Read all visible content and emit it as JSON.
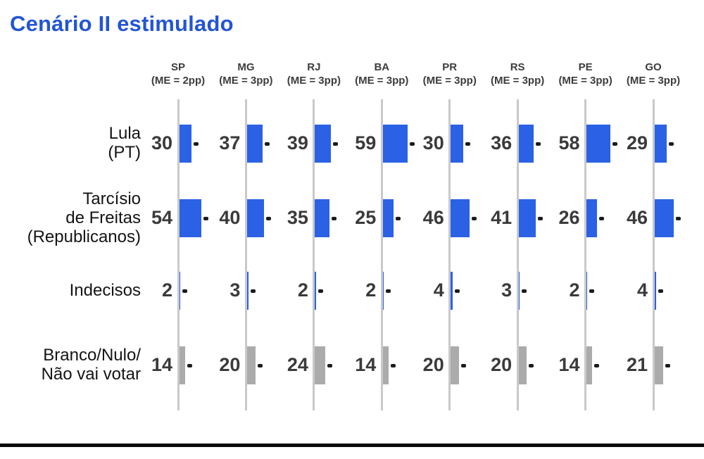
{
  "title": "Cenário II estimulado",
  "colors": {
    "title": "#2355d4",
    "bar_blue": "#2b61e4",
    "bar_gray": "#ababab",
    "axis_line": "#c9c9c9",
    "tick": "#1c1c1c",
    "value_text": "#3a3a3a",
    "bottom_rule": "#0a0a0a"
  },
  "chart_data": {
    "type": "bar",
    "orientation": "horizontal-small-multiples",
    "title": "Cenário II estimulado",
    "legend_position": "none",
    "grid": "off",
    "value_axis_range": [
      0,
      60
    ],
    "unit": "percentage points",
    "columns": [
      {
        "state": "SP",
        "margin_of_error": "(ME = 2pp)"
      },
      {
        "state": "MG",
        "margin_of_error": "(ME = 3pp)"
      },
      {
        "state": "RJ",
        "margin_of_error": "(ME = 3pp)"
      },
      {
        "state": "BA",
        "margin_of_error": "(ME = 3pp)"
      },
      {
        "state": "PR",
        "margin_of_error": "(ME = 3pp)"
      },
      {
        "state": "RS",
        "margin_of_error": "(ME = 3pp)"
      },
      {
        "state": "PE",
        "margin_of_error": "(ME = 3pp)"
      },
      {
        "state": "GO",
        "margin_of_error": "(ME = 3pp)"
      }
    ],
    "rows": [
      {
        "name": "Lula (PT)",
        "label_lines": [
          "Lula",
          "(PT)"
        ],
        "color": "#2b61e4",
        "values": [
          30,
          37,
          39,
          59,
          30,
          36,
          58,
          29
        ]
      },
      {
        "name": "Tarcísio de Freitas (Republicanos)",
        "label_lines": [
          "Tarcísio",
          "de Freitas",
          "(Republicanos)"
        ],
        "color": "#2b61e4",
        "values": [
          54,
          40,
          35,
          25,
          46,
          41,
          26,
          46
        ]
      },
      {
        "name": "Indecisos",
        "label_lines": [
          "Indecisos"
        ],
        "color": "#2b61e4",
        "values": [
          2,
          3,
          2,
          2,
          4,
          3,
          2,
          4
        ]
      },
      {
        "name": "Branco/Nulo/Não vai votar",
        "label_lines": [
          "Branco/Nulo/",
          "Não vai votar"
        ],
        "color": "#ababab",
        "values": [
          14,
          20,
          24,
          14,
          20,
          20,
          14,
          21
        ]
      }
    ]
  }
}
